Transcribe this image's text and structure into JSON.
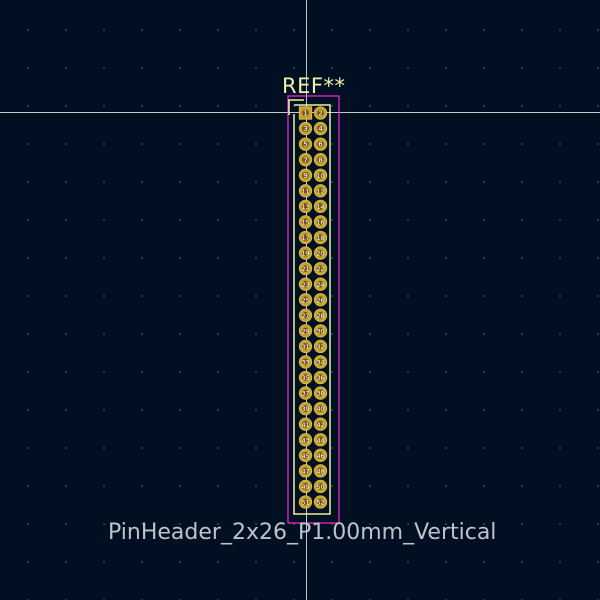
{
  "footprint": {
    "reference": "REF**",
    "value": "PinHeader_2x26_P1.00mm_Vertical",
    "rows": 26,
    "columns": 2
  },
  "colors": {
    "background": "#001023",
    "grid_dot": "#7882a0",
    "crosshair": "#c8c8c8",
    "courtyard": "#ff26e2",
    "silkscreen": "#f2eda1",
    "pad_copper": "#c8a12a",
    "pad_ring": "#e3c04b",
    "pad_hole": "#6b5a20",
    "pad_number": "#ffffff",
    "reference_text": "#f0f0a8",
    "value_text": "#bfc2c8"
  }
}
